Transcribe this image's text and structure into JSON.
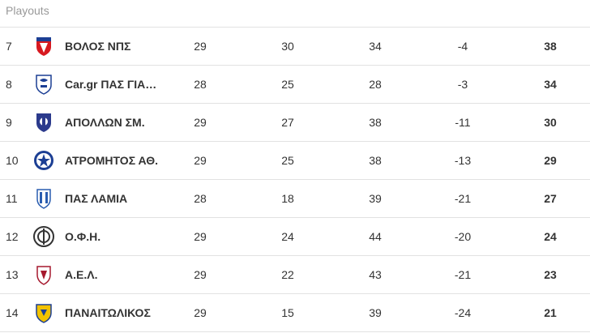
{
  "section": {
    "title": "Playouts"
  },
  "rows": [
    {
      "position": "7",
      "team": "ΒΟΛΟΣ ΝΠΣ",
      "played": "29",
      "c2": "30",
      "c3": "34",
      "diff": "-4",
      "points": "38",
      "logo_icon": "volos-crest-icon",
      "logo_colors": [
        "#d71920",
        "#1c3f94"
      ]
    },
    {
      "position": "8",
      "team": "Car.gr ΠΑΣ ΓΙΑ…",
      "played": "28",
      "c2": "25",
      "c3": "28",
      "diff": "-3",
      "points": "34",
      "logo_icon": "pas-giannina-crest-icon",
      "logo_colors": [
        "#1c3f94",
        "#ffffff"
      ]
    },
    {
      "position": "9",
      "team": "ΑΠΟΛΛΩΝ ΣΜ.",
      "played": "29",
      "c2": "27",
      "c3": "38",
      "diff": "-11",
      "points": "30",
      "logo_icon": "apollon-crest-icon",
      "logo_colors": [
        "#2b3a8c",
        "#ffffff"
      ]
    },
    {
      "position": "10",
      "team": "ΑΤΡΟΜΗΤΟΣ ΑΘ.",
      "played": "29",
      "c2": "25",
      "c3": "38",
      "diff": "-13",
      "points": "29",
      "logo_icon": "atromitos-star-icon",
      "logo_colors": [
        "#1c3f94",
        "#ffffff"
      ]
    },
    {
      "position": "11",
      "team": "ΠΑΣ ΛΑΜΙΑ",
      "played": "28",
      "c2": "18",
      "c3": "39",
      "diff": "-21",
      "points": "27",
      "logo_icon": "lamia-crest-icon",
      "logo_colors": [
        "#2a5db0",
        "#ffffff"
      ]
    },
    {
      "position": "12",
      "team": "Ο.Φ.Η.",
      "played": "29",
      "c2": "24",
      "c3": "44",
      "diff": "-20",
      "points": "24",
      "logo_icon": "ofi-crest-icon",
      "logo_colors": [
        "#333333",
        "#ffffff"
      ]
    },
    {
      "position": "13",
      "team": "Α.Ε.Λ.",
      "played": "29",
      "c2": "22",
      "c3": "43",
      "diff": "-21",
      "points": "23",
      "logo_icon": "ael-crest-icon",
      "logo_colors": [
        "#a6192e",
        "#ffffff"
      ]
    },
    {
      "position": "14",
      "team": "ΠΑΝΑΙΤΩΛΙΚΟΣ",
      "played": "29",
      "c2": "15",
      "c3": "39",
      "diff": "-24",
      "points": "21",
      "logo_icon": "panetolikos-crest-icon",
      "logo_colors": [
        "#f2c200",
        "#1c3f94"
      ]
    }
  ]
}
